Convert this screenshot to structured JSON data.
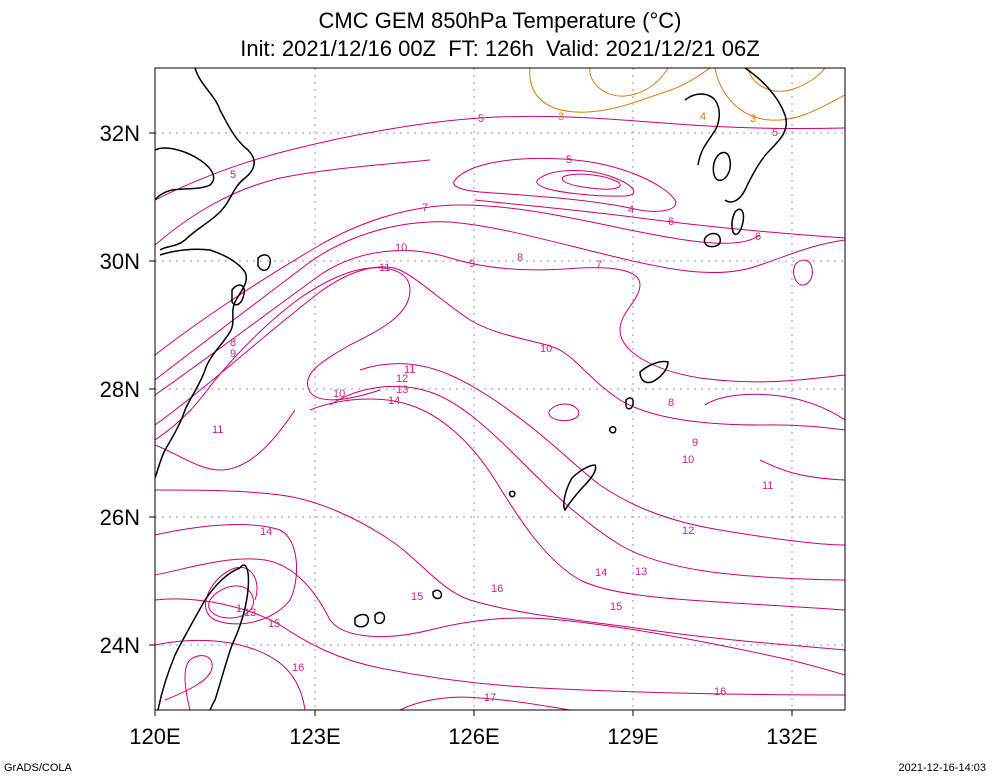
{
  "header": {
    "line1": "CMC GEM 850hPa Temperature (°C)",
    "line2": "Init: 2021/12/16 00Z  FT: 126h  Valid: 2021/12/21 06Z"
  },
  "map": {
    "projection": "lat-lon",
    "lon_ticks": [
      "120E",
      "123E",
      "126E",
      "129E",
      "132E"
    ],
    "lat_ticks": [
      "32N",
      "30N",
      "28N",
      "26N",
      "24N"
    ],
    "gridlines": "dotted",
    "contour_colors": {
      "warm": "#cc0077",
      "cold": "#e07a10",
      "coast": "#000000"
    },
    "contour_labels": [
      {
        "text": "5",
        "color": "#cc2288"
      },
      {
        "text": "3",
        "color": "#e07a10"
      },
      {
        "text": "4",
        "color": "#e07a10"
      },
      {
        "text": "3",
        "color": "#e07a10"
      },
      {
        "text": "5",
        "color": "#cc2288"
      },
      {
        "text": "5",
        "color": "#cc2288"
      },
      {
        "text": "5",
        "color": "#cc2288"
      },
      {
        "text": "4",
        "color": "#cc2288"
      },
      {
        "text": "6",
        "color": "#cc2288"
      },
      {
        "text": "6",
        "color": "#cc2288"
      },
      {
        "text": "7",
        "color": "#cc2288"
      },
      {
        "text": "10",
        "color": "#cc2288"
      },
      {
        "text": "11",
        "color": "#cc2288"
      },
      {
        "text": "9",
        "color": "#cc2288"
      },
      {
        "text": "8",
        "color": "#cc2288"
      },
      {
        "text": "7",
        "color": "#cc2288"
      },
      {
        "text": "8",
        "color": "#cc2288"
      },
      {
        "text": "9",
        "color": "#cc2288"
      },
      {
        "text": "10",
        "color": "#cc2288"
      },
      {
        "text": "11",
        "color": "#cc2288"
      },
      {
        "text": "12",
        "color": "#cc2288"
      },
      {
        "text": "10",
        "color": "#cc2288"
      },
      {
        "text": "13",
        "color": "#cc2288"
      },
      {
        "text": "14",
        "color": "#cc2288"
      },
      {
        "text": "8",
        "color": "#cc2288"
      },
      {
        "text": "9",
        "color": "#cc2288"
      },
      {
        "text": "10",
        "color": "#cc2288"
      },
      {
        "text": "11",
        "color": "#cc2288"
      },
      {
        "text": "11",
        "color": "#cc2288"
      },
      {
        "text": "12",
        "color": "#cc2288"
      },
      {
        "text": "14",
        "color": "#cc2288"
      },
      {
        "text": "14",
        "color": "#cc2288"
      },
      {
        "text": "13",
        "color": "#cc2288"
      },
      {
        "text": "15",
        "color": "#cc2288"
      },
      {
        "text": "15",
        "color": "#cc2288"
      },
      {
        "text": "16",
        "color": "#cc2288"
      },
      {
        "text": "1",
        "color": "#cc2288"
      },
      {
        "text": "13",
        "color": "#cc2288"
      },
      {
        "text": "15",
        "color": "#cc2288"
      },
      {
        "text": "16",
        "color": "#cc2288"
      },
      {
        "text": "17",
        "color": "#cc2288"
      },
      {
        "text": "16",
        "color": "#cc2288"
      }
    ]
  },
  "footer": {
    "left": "GrADS/COLA",
    "right": "2021-12-16-14:03"
  }
}
